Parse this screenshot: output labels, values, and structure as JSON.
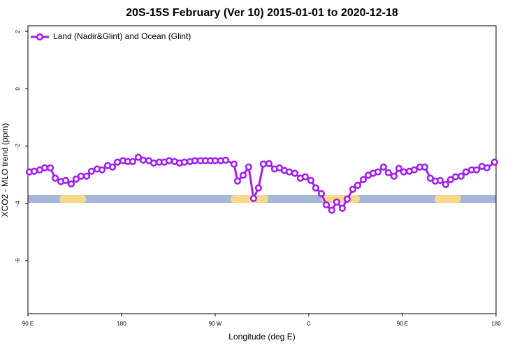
{
  "chart_data": {
    "type": "line",
    "title": "20S-15S February (Ver 10)   2015-01-01 to 2020-12-18",
    "x_label": "Longitude (deg E)",
    "y_label": "XCO2 - MLO trend (ppm)",
    "x": [
      91.3,
      96.0,
      101.4,
      106.1,
      111.5,
      116.2,
      121.6,
      126.3,
      131.6,
      136.3,
      141.0,
      146.4,
      151.1,
      156.5,
      161.2,
      166.6,
      171.3,
      176.0,
      181.3,
      186.0,
      190.7,
      196.1,
      200.8,
      206.2,
      210.9,
      216.2,
      221.0,
      225.7,
      231.0,
      235.7,
      240.4,
      245.8,
      250.5,
      255.9,
      260.6,
      265.3,
      270.0,
      275.4,
      280.1,
      288.1,
      291.5,
      296.9,
      302.2,
      306.9,
      311.6,
      316.3,
      321.7,
      327.1,
      331.8,
      336.5,
      341.2,
      346.6,
      351.9,
      356.6,
      362.0,
      366.7,
      372.1,
      376.8,
      382.1,
      386.8,
      392.2,
      396.9,
      402.3,
      407.0,
      412.4,
      417.1,
      421.8,
      426.5,
      431.8,
      436.5,
      441.9,
      446.6,
      451.3,
      456.7,
      461.4,
      466.8,
      471.5,
      476.8,
      481.5,
      486.2,
      491.6,
      496.3,
      501.0,
      506.4,
      511.1,
      516.5,
      521.2,
      526.5,
      531.2,
      538.6
    ],
    "series": [
      {
        "name": "Land (Nadir&Glint) and Ocean (Glint)",
        "color": "#a020f0",
        "values": [
          -2.9,
          -2.88,
          -2.83,
          -2.76,
          -2.76,
          -3.12,
          -3.24,
          -3.2,
          -3.32,
          -3.15,
          -3.05,
          -3.05,
          -2.88,
          -2.8,
          -2.83,
          -2.68,
          -2.73,
          -2.56,
          -2.51,
          -2.54,
          -2.54,
          -2.39,
          -2.49,
          -2.51,
          -2.59,
          -2.56,
          -2.56,
          -2.51,
          -2.54,
          -2.59,
          -2.56,
          -2.54,
          -2.51,
          -2.51,
          -2.51,
          -2.51,
          -2.51,
          -2.51,
          -2.49,
          -2.63,
          -3.22,
          -3.02,
          -2.73,
          -3.83,
          -3.46,
          -2.63,
          -2.61,
          -2.8,
          -2.76,
          -2.85,
          -2.9,
          -2.95,
          -3.12,
          -3.07,
          -3.2,
          -3.46,
          -3.66,
          -4.05,
          -4.24,
          -3.95,
          -4.17,
          -3.85,
          -3.51,
          -3.37,
          -3.17,
          -3.02,
          -2.95,
          -2.9,
          -2.73,
          -2.93,
          -3.05,
          -2.78,
          -2.9,
          -2.88,
          -2.83,
          -2.73,
          -2.73,
          -3.12,
          -3.22,
          -3.2,
          -3.34,
          -3.17,
          -3.07,
          -3.05,
          -2.9,
          -2.83,
          -2.83,
          -2.71,
          -2.76,
          -2.56
        ]
      }
    ],
    "xlim": [
      90,
      540
    ],
    "xticks": [
      {
        "value": 90,
        "label": "90 E"
      },
      {
        "value": 180,
        "label": "180"
      },
      {
        "value": 270,
        "label": "90 W"
      },
      {
        "value": 360,
        "label": "0"
      },
      {
        "value": 450,
        "label": "90 E"
      },
      {
        "value": 540,
        "label": "180"
      }
    ],
    "ylim": [
      -7.85,
      2.2
    ],
    "yticks": [
      2,
      0,
      -2,
      -4,
      -6
    ],
    "legend": "top-left"
  }
}
